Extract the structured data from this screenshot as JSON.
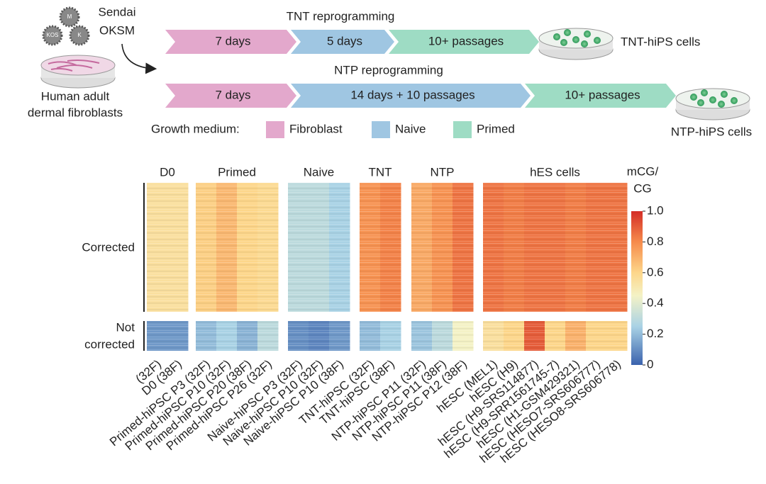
{
  "diagram": {
    "virus_text": [
      "Sendai",
      "OKSM"
    ],
    "virus_labels": [
      "M",
      "KOS",
      "K"
    ],
    "source_lines": [
      "Human adult",
      "dermal fibroblasts"
    ],
    "tnt": {
      "title": "TNT reprogramming",
      "steps": [
        "7 days",
        "5 days",
        "10+ passages"
      ],
      "result": "TNT-hiPS cells"
    },
    "ntp": {
      "title": "NTP reprogramming",
      "steps": [
        "7 days",
        "14 days + 10 passages",
        "10+ passages"
      ],
      "result": "NTP-hiPS cells"
    },
    "legend": {
      "title": "Growth medium:",
      "items": [
        {
          "name": "Fibroblast",
          "color": "#e3a8cc"
        },
        {
          "name": "Naive",
          "color": "#9fc6e2"
        },
        {
          "name": "Primed",
          "color": "#9edcc4"
        }
      ]
    }
  },
  "chart_data": {
    "type": "heatmap",
    "groups": [
      {
        "name": "D0",
        "size": 2
      },
      {
        "name": "Primed",
        "size": 4
      },
      {
        "name": "Naive",
        "size": 3
      },
      {
        "name": "TNT",
        "size": 2
      },
      {
        "name": "NTP",
        "size": 3
      },
      {
        "name": "hES cells",
        "size": 7
      }
    ],
    "columns": [
      "(32F)",
      "D0 (38F)",
      "Primed-hiPSC P3 (32F)",
      "Primed-hiPSC P10 (32F)",
      "Primed-hiPSC P20 (38F)",
      "Primed-hiPSC P26 (32F)",
      "Naive-hiPSC P3 (32F)",
      "Naive-hiPSC P10 (32F)",
      "Naive-hiPSC P10 (38F)",
      "TNT-hiPSC (32F)",
      "TNT-hiPSC (38F)",
      "NTP-hiPSC P11 (32F)",
      "NTP-hiPSC P11 (38F)",
      "NTP-hiPSC P12 (38F)",
      "hESC (MEL1)",
      "hESC (H9)",
      "hESC (H9-SRS114877)",
      "hESC (H9-SRR1561745-7)",
      "hESC (H1-GSM429321)",
      "hESC (HESO7-SRS606777)",
      "hESC (HESO8-SRS606778)"
    ],
    "rows": [
      {
        "name": "Corrected",
        "values": [
          0.55,
          0.55,
          0.62,
          0.68,
          0.6,
          0.58,
          0.3,
          0.3,
          0.25,
          0.78,
          0.82,
          0.72,
          0.78,
          0.85,
          0.85,
          0.83,
          0.85,
          0.85,
          0.83,
          0.85,
          0.85
        ]
      },
      {
        "name": [
          "Not",
          "corrected"
        ],
        "values": [
          0.12,
          0.12,
          0.2,
          0.25,
          0.18,
          0.3,
          0.1,
          0.08,
          0.12,
          0.2,
          0.25,
          0.22,
          0.3,
          0.45,
          0.55,
          0.6,
          0.9,
          0.6,
          0.7,
          0.6,
          0.6
        ]
      }
    ],
    "colorbar_title": [
      "mCG/",
      "CG"
    ],
    "zlim": [
      0,
      1
    ],
    "zticks": [
      0,
      0.2,
      0.4,
      0.6,
      0.8,
      {
        "value": 1,
        "label": "1.0"
      }
    ],
    "colormap": [
      [
        0,
        "#3a62ad"
      ],
      [
        0.25,
        "#a9d2e5"
      ],
      [
        0.45,
        "#f4f2c6"
      ],
      [
        0.6,
        "#fdd68a"
      ],
      [
        0.8,
        "#f68b4c"
      ],
      [
        1,
        "#d42d26"
      ]
    ]
  }
}
